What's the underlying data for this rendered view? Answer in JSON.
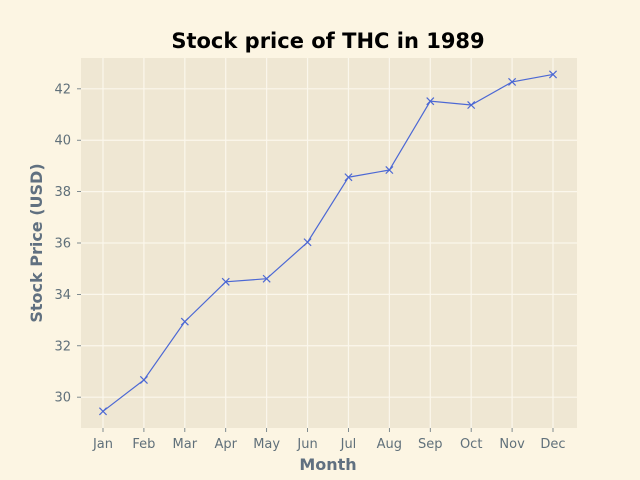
{
  "chart_data": {
    "type": "line",
    "title": "Stock price of THC in 1989",
    "xlabel": "Month",
    "ylabel": "Stock Price (USD)",
    "categories": [
      "Jan",
      "Feb",
      "Mar",
      "Apr",
      "May",
      "Jun",
      "Jul",
      "Aug",
      "Sep",
      "Oct",
      "Nov",
      "Dec"
    ],
    "series": [
      {
        "values": [
          29.45,
          30.67,
          32.94,
          34.49,
          34.61,
          36.03,
          38.56,
          38.84,
          41.52,
          41.37,
          42.27,
          42.56
        ],
        "color": "#4c68d4",
        "marker": "x"
      }
    ],
    "ylim": [
      28.8,
      43.2
    ],
    "yticks": [
      30,
      32,
      34,
      36,
      38,
      40,
      42
    ],
    "grid": true,
    "plot_background": "#efe7d3",
    "figure_background": "#fcf5e3"
  }
}
